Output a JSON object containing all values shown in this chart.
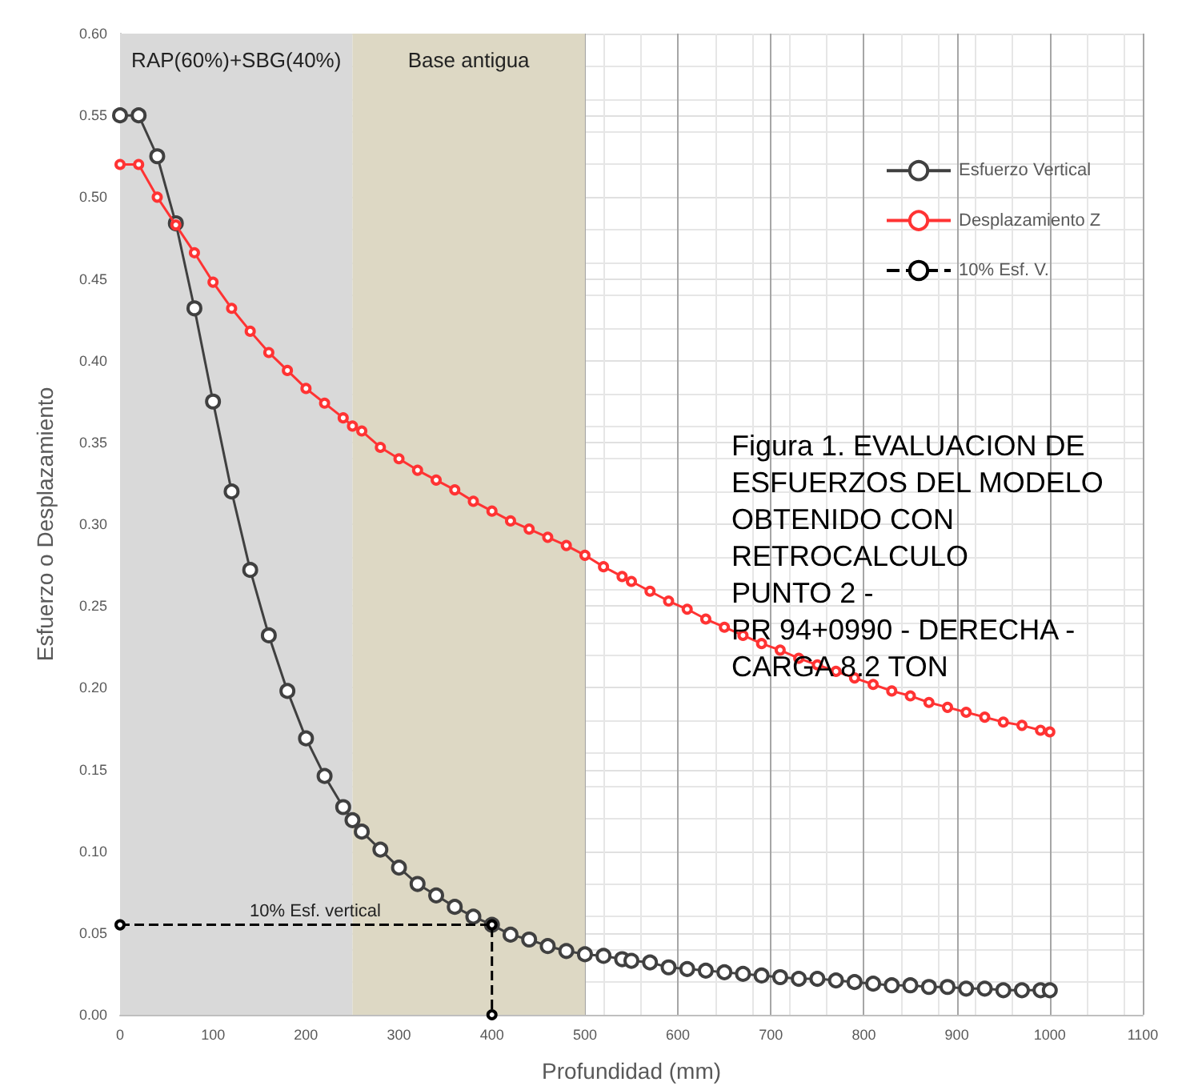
{
  "chart_data": {
    "type": "line",
    "title": "Figura 1. EVALUACION DE\nESFUERZOS DEL MODELO\nOBTENIDO CON\nRETROCALCULO\nPUNTO 2 -\nPR 94+0990 - DERECHA -\nCARGA 8.2 TON",
    "xlabel": "Profundidad (mm)",
    "ylabel": "Esfuerzo o Desplazamiento",
    "series": [
      {
        "name": "Esfuerzo Vertical",
        "color": "#404040",
        "x": [
          0,
          20,
          40,
          60,
          80,
          100,
          120,
          140,
          160,
          180,
          200,
          220,
          240,
          250,
          260,
          280,
          300,
          320,
          340,
          360,
          380,
          400,
          420,
          440,
          460,
          480,
          500,
          520,
          540,
          550,
          570,
          590,
          610,
          630,
          650,
          670,
          690,
          710,
          730,
          750,
          770,
          790,
          810,
          830,
          850,
          870,
          890,
          910,
          930,
          950,
          970,
          990,
          1000
        ],
        "values": [
          0.55,
          0.55,
          0.525,
          0.484,
          0.432,
          0.375,
          0.32,
          0.272,
          0.232,
          0.198,
          0.169,
          0.146,
          0.127,
          0.119,
          0.112,
          0.101,
          0.09,
          0.08,
          0.073,
          0.066,
          0.06,
          0.055,
          0.049,
          0.046,
          0.042,
          0.039,
          0.037,
          0.036,
          0.034,
          0.033,
          0.032,
          0.029,
          0.028,
          0.027,
          0.026,
          0.025,
          0.024,
          0.023,
          0.022,
          0.022,
          0.021,
          0.02,
          0.019,
          0.018,
          0.018,
          0.017,
          0.017,
          0.016,
          0.016,
          0.015,
          0.015,
          0.015,
          0.015
        ]
      },
      {
        "name": "Desplazamiento Z",
        "color": "#ff3333",
        "x": [
          0,
          20,
          40,
          60,
          80,
          100,
          120,
          140,
          160,
          180,
          200,
          220,
          240,
          250,
          260,
          280,
          300,
          320,
          340,
          360,
          380,
          400,
          420,
          440,
          460,
          480,
          500,
          520,
          540,
          550,
          570,
          590,
          610,
          630,
          650,
          670,
          690,
          710,
          730,
          750,
          770,
          790,
          810,
          830,
          850,
          870,
          890,
          910,
          930,
          950,
          970,
          990,
          1000
        ],
        "values": [
          0.52,
          0.52,
          0.5,
          0.483,
          0.466,
          0.448,
          0.432,
          0.418,
          0.405,
          0.394,
          0.383,
          0.374,
          0.365,
          0.36,
          0.357,
          0.347,
          0.34,
          0.333,
          0.327,
          0.321,
          0.314,
          0.308,
          0.302,
          0.297,
          0.292,
          0.287,
          0.281,
          0.274,
          0.268,
          0.265,
          0.259,
          0.253,
          0.248,
          0.242,
          0.237,
          0.232,
          0.227,
          0.223,
          0.218,
          0.214,
          0.21,
          0.206,
          0.202,
          0.198,
          0.195,
          0.191,
          0.188,
          0.185,
          0.182,
          0.179,
          0.177,
          0.174,
          0.173
        ]
      },
      {
        "name": "10% Esf. V.",
        "color": "#000000",
        "line_style": "dashed",
        "x": [
          0,
          400,
          400
        ],
        "values": [
          0.055,
          0.055,
          0
        ]
      }
    ],
    "bands": [
      {
        "axis": "x",
        "from": 0,
        "to": 250,
        "label": "RAP(60%)+SBG(40%)",
        "color": "#d9d9d9"
      },
      {
        "axis": "x",
        "from": 250,
        "to": 500,
        "label": "Base antigua",
        "color": "#ddd8c4"
      }
    ],
    "annotations": [
      {
        "text": "10% Esf. vertical",
        "x": 210,
        "y": 0.055
      }
    ],
    "xlim": [
      0,
      1100
    ],
    "xticks": [
      0,
      100,
      200,
      300,
      400,
      500,
      600,
      700,
      800,
      900,
      1000,
      1100
    ],
    "ylim": [
      0,
      0.6
    ],
    "yticks": [
      {
        "value": 0,
        "label": "0.00"
      },
      {
        "value": 0.05,
        "label": "0.05"
      },
      {
        "value": 0.1,
        "label": "0.10"
      },
      {
        "value": 0.15,
        "label": "0.15"
      },
      {
        "value": 0.2,
        "label": "0.20"
      },
      {
        "value": 0.25,
        "label": "0.25"
      },
      {
        "value": 0.3,
        "label": "0.30"
      },
      {
        "value": 0.35,
        "label": "0.35"
      },
      {
        "value": 0.4,
        "label": "0.40"
      },
      {
        "value": 0.45,
        "label": "0.45"
      },
      {
        "value": 0.5,
        "label": "0.50"
      },
      {
        "value": 0.55,
        "label": "0.55"
      },
      {
        "value": 0.6,
        "label": "0.60"
      }
    ],
    "grid": true,
    "legend": "right",
    "marker": "circle"
  }
}
